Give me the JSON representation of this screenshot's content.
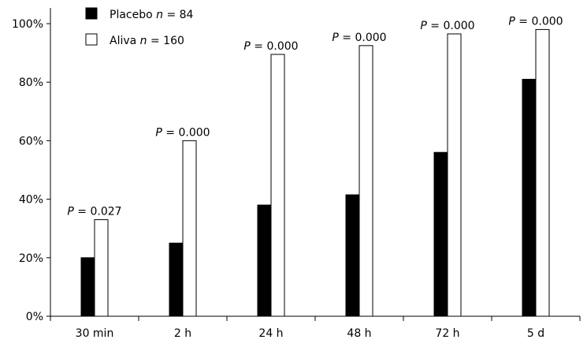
{
  "chart_data": {
    "type": "bar",
    "categories": [
      "30 min",
      "2 h",
      "24 h",
      "48 h",
      "72 h",
      "5 d"
    ],
    "series": [
      {
        "name": "Placebo",
        "n_label": "n = 84",
        "values": [
          20,
          25,
          38,
          41.5,
          56,
          81
        ],
        "fill": "#000000"
      },
      {
        "name": "Aliva",
        "n_label": "n = 160",
        "values": [
          33,
          60,
          89.5,
          92.5,
          96.5,
          98
        ],
        "fill": "#ffffff"
      }
    ],
    "annotations": [
      {
        "category": "30 min",
        "p_symbol": "P",
        "p_text": " = 0.027"
      },
      {
        "category": "2 h",
        "p_symbol": "P",
        "p_text": " = 0.000"
      },
      {
        "category": "24 h",
        "p_symbol": "P",
        "p_text": " = 0.000"
      },
      {
        "category": "48 h",
        "p_symbol": "P",
        "p_text": " = 0.000"
      },
      {
        "category": "72 h",
        "p_symbol": "P",
        "p_text": " = 0.000"
      },
      {
        "category": "5 d",
        "p_symbol": "P",
        "p_text": " = 0.000"
      }
    ],
    "yticks": [
      "0%",
      "20%",
      "40%",
      "60%",
      "80%",
      "100%"
    ],
    "ylim": [
      0,
      100
    ],
    "xlabel": "",
    "ylabel": "",
    "title": "",
    "grid": false,
    "legend_position": "top-left"
  }
}
